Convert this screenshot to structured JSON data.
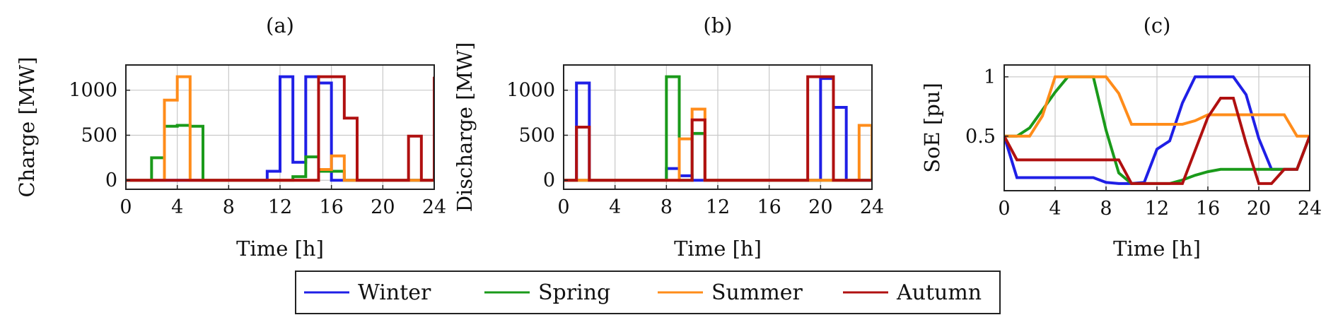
{
  "colors": {
    "Winter": "#1f1fe6",
    "Spring": "#1a9a1a",
    "Summer": "#ff8c1a",
    "Autumn": "#b01010"
  },
  "legend": [
    "Winter",
    "Spring",
    "Summer",
    "Autumn"
  ],
  "chart_data": [
    {
      "id": "a",
      "title": "(a)",
      "type": "line",
      "step": true,
      "xlabel": "Time [h]",
      "ylabel": "Charge [MW]",
      "xlim": [
        0,
        24
      ],
      "ylim": [
        -100,
        1280
      ],
      "grid": true,
      "x_ticks": [
        0,
        4,
        8,
        12,
        16,
        20,
        24
      ],
      "y_ticks": [
        0,
        500,
        1000
      ],
      "x": [
        0,
        1,
        2,
        3,
        4,
        5,
        6,
        7,
        8,
        9,
        10,
        11,
        12,
        13,
        14,
        15,
        16,
        17,
        18,
        19,
        20,
        21,
        22,
        23,
        24
      ],
      "series": [
        {
          "name": "Winter",
          "values": [
            0,
            0,
            0,
            0,
            0,
            0,
            0,
            0,
            0,
            0,
            0,
            100,
            1150,
            200,
            1150,
            1080,
            0,
            0,
            0,
            0,
            0,
            0,
            0,
            0,
            0
          ]
        },
        {
          "name": "Spring",
          "values": [
            0,
            0,
            250,
            600,
            610,
            600,
            0,
            0,
            0,
            0,
            0,
            0,
            0,
            40,
            260,
            100,
            100,
            0,
            0,
            0,
            0,
            0,
            0,
            0,
            0
          ]
        },
        {
          "name": "Summer",
          "values": [
            0,
            0,
            0,
            890,
            1150,
            0,
            0,
            0,
            0,
            0,
            0,
            0,
            0,
            0,
            0,
            120,
            270,
            0,
            0,
            0,
            0,
            0,
            0,
            0,
            0
          ]
        },
        {
          "name": "Autumn",
          "values": [
            0,
            0,
            0,
            0,
            0,
            0,
            0,
            0,
            0,
            0,
            0,
            0,
            0,
            0,
            0,
            1150,
            1150,
            690,
            0,
            0,
            0,
            0,
            490,
            0,
            1150
          ]
        }
      ]
    },
    {
      "id": "b",
      "title": "(b)",
      "type": "line",
      "step": true,
      "xlabel": "Time [h]",
      "ylabel": "Discharge [MW]",
      "xlim": [
        0,
        24
      ],
      "ylim": [
        -100,
        1280
      ],
      "grid": true,
      "x_ticks": [
        0,
        4,
        8,
        12,
        16,
        20,
        24
      ],
      "y_ticks": [
        0,
        500,
        1000
      ],
      "x": [
        0,
        1,
        2,
        3,
        4,
        5,
        6,
        7,
        8,
        9,
        10,
        11,
        12,
        13,
        14,
        15,
        16,
        17,
        18,
        19,
        20,
        21,
        22,
        23,
        24
      ],
      "series": [
        {
          "name": "Winter",
          "values": [
            0,
            1080,
            0,
            0,
            0,
            0,
            0,
            0,
            130,
            50,
            0,
            0,
            0,
            0,
            0,
            0,
            0,
            0,
            0,
            0,
            1130,
            810,
            0,
            0,
            0
          ]
        },
        {
          "name": "Spring",
          "values": [
            0,
            0,
            0,
            0,
            0,
            0,
            0,
            0,
            1150,
            0,
            520,
            0,
            0,
            0,
            0,
            0,
            0,
            0,
            0,
            0,
            0,
            0,
            0,
            0,
            0
          ]
        },
        {
          "name": "Summer",
          "values": [
            0,
            0,
            0,
            0,
            0,
            0,
            0,
            0,
            0,
            460,
            790,
            0,
            0,
            0,
            0,
            0,
            0,
            0,
            0,
            0,
            0,
            0,
            0,
            610,
            0
          ]
        },
        {
          "name": "Autumn",
          "values": [
            0,
            590,
            0,
            0,
            0,
            0,
            0,
            0,
            0,
            0,
            670,
            0,
            0,
            0,
            0,
            0,
            0,
            0,
            0,
            1150,
            1150,
            0,
            0,
            0,
            0
          ]
        }
      ]
    },
    {
      "id": "c",
      "title": "(c)",
      "type": "line",
      "step": false,
      "xlabel": "Time [h]",
      "ylabel": "SoE [pu]",
      "xlim": [
        0,
        24
      ],
      "ylim": [
        0.04,
        1.1
      ],
      "grid": true,
      "x_ticks": [
        0,
        4,
        8,
        12,
        16,
        20,
        24
      ],
      "y_ticks": [
        0.5,
        1
      ],
      "x": [
        0,
        1,
        2,
        3,
        4,
        5,
        6,
        7,
        8,
        9,
        10,
        11,
        12,
        13,
        14,
        15,
        16,
        17,
        18,
        19,
        20,
        21,
        22,
        23,
        24
      ],
      "series": [
        {
          "name": "Winter",
          "values": [
            0.5,
            0.15,
            0.15,
            0.15,
            0.15,
            0.15,
            0.15,
            0.15,
            0.11,
            0.1,
            0.1,
            0.11,
            0.39,
            0.46,
            0.78,
            1.0,
            1.0,
            1.0,
            1.0,
            0.85,
            0.48,
            0.22,
            0.22,
            0.22,
            0.5
          ]
        },
        {
          "name": "Spring",
          "values": [
            0.5,
            0.5,
            0.57,
            0.72,
            0.87,
            1.0,
            1.0,
            1.0,
            0.55,
            0.19,
            0.1,
            0.1,
            0.1,
            0.1,
            0.13,
            0.17,
            0.2,
            0.22,
            0.22,
            0.22,
            0.22,
            0.22,
            0.22,
            0.22,
            0.5
          ]
        },
        {
          "name": "Summer",
          "values": [
            0.5,
            0.5,
            0.5,
            0.67,
            1.0,
            1.0,
            1.0,
            1.0,
            1.0,
            0.86,
            0.6,
            0.6,
            0.6,
            0.6,
            0.6,
            0.63,
            0.68,
            0.68,
            0.68,
            0.68,
            0.68,
            0.68,
            0.68,
            0.5,
            0.5
          ]
        },
        {
          "name": "Autumn",
          "values": [
            0.5,
            0.3,
            0.3,
            0.3,
            0.3,
            0.3,
            0.3,
            0.3,
            0.3,
            0.3,
            0.1,
            0.1,
            0.1,
            0.1,
            0.1,
            0.38,
            0.66,
            0.82,
            0.82,
            0.44,
            0.1,
            0.1,
            0.22,
            0.22,
            0.5
          ]
        }
      ]
    }
  ]
}
